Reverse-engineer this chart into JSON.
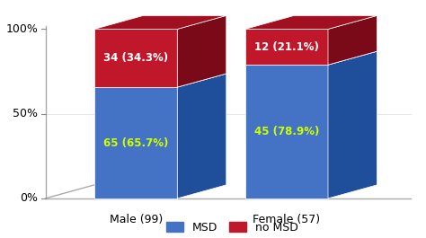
{
  "categories": [
    "Male (99)",
    "Female (57)"
  ],
  "msd_pct": [
    65.7,
    78.9
  ],
  "no_msd_pct": [
    34.3,
    21.1
  ],
  "msd_labels": [
    "65 (65.7%)",
    "45 (78.9%)"
  ],
  "no_msd_labels": [
    "34 (34.3%)",
    "12 (21.1%)"
  ],
  "msd_front_color": "#4472C4",
  "msd_side_color": "#1F4E9A",
  "msd_top_color": "#2558B0",
  "no_msd_front_color": "#C0182A",
  "no_msd_side_color": "#7B0A18",
  "no_msd_top_color": "#A01020",
  "msd_label_color": "#CCFF00",
  "no_msd_label_color": "#FFFFFF",
  "ytick_labels": [
    "0%",
    "50%",
    "100%"
  ],
  "ytick_vals": [
    0,
    50,
    100
  ],
  "legend_msd": "MSD",
  "legend_no_msd": "no MSD",
  "background_color": "#FFFFFF",
  "axis_line_color": "#AAAAAA",
  "font_size_labels": 8.5,
  "font_size_ticks": 9,
  "font_size_legend": 9
}
